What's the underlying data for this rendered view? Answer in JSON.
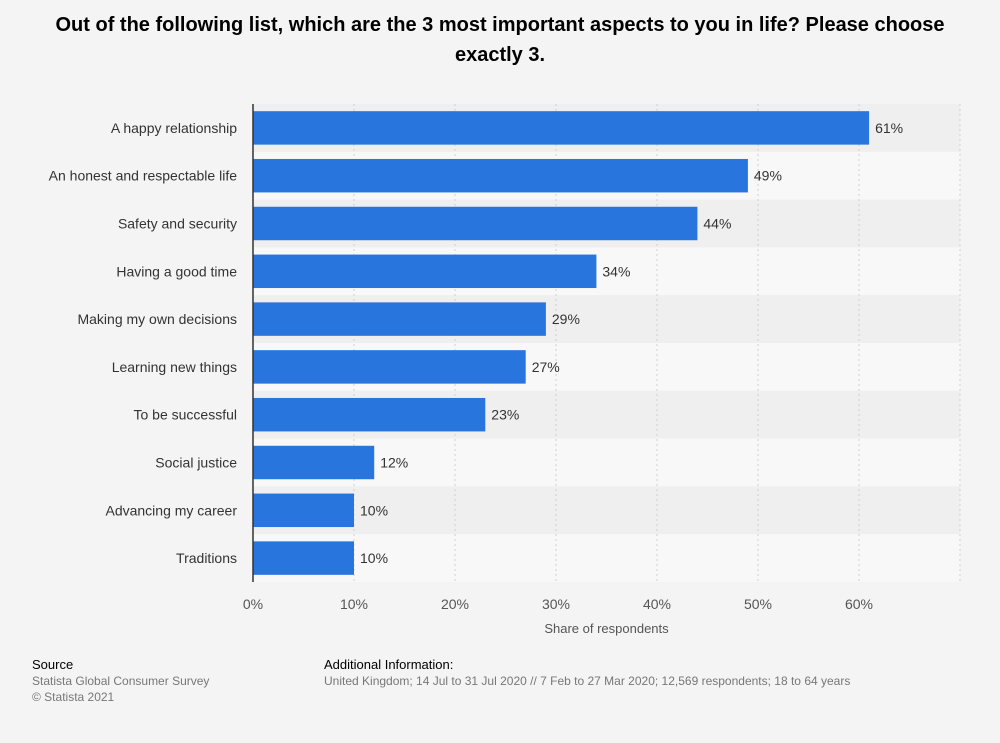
{
  "title": "Out of the following list, which are the 3 most important aspects to you in life? Please choose exactly 3.",
  "chart_data": {
    "type": "bar",
    "orientation": "horizontal",
    "categories": [
      "A happy relationship",
      "An honest and respectable life",
      "Safety and security",
      "Having a good time",
      "Making my own decisions",
      "Learning new things",
      "To be successful",
      "Social justice",
      "Advancing my career",
      "Traditions"
    ],
    "values": [
      61,
      49,
      44,
      34,
      29,
      27,
      23,
      12,
      10,
      10
    ],
    "value_labels": [
      "61%",
      "49%",
      "44%",
      "34%",
      "29%",
      "27%",
      "23%",
      "12%",
      "10%",
      "10%"
    ],
    "xlim": [
      0,
      70
    ],
    "xticks": [
      0,
      10,
      20,
      30,
      40,
      50,
      60
    ],
    "xtick_labels": [
      "0%",
      "10%",
      "20%",
      "30%",
      "40%",
      "50%",
      "60%"
    ],
    "xlabel": "Share of respondents",
    "ylabel": "",
    "bar_color": "#2876dd",
    "grid": true
  },
  "footer": {
    "source_heading": "Source",
    "source_lines": [
      "Statista Global Consumer Survey",
      "© Statista 2021"
    ],
    "info_heading": "Additional Information:",
    "info_text": "United Kingdom; 14 Jul to 31 Jul 2020 // 7 Feb to 27 Mar 2020; 12,569 respondents; 18 to 64 years"
  }
}
